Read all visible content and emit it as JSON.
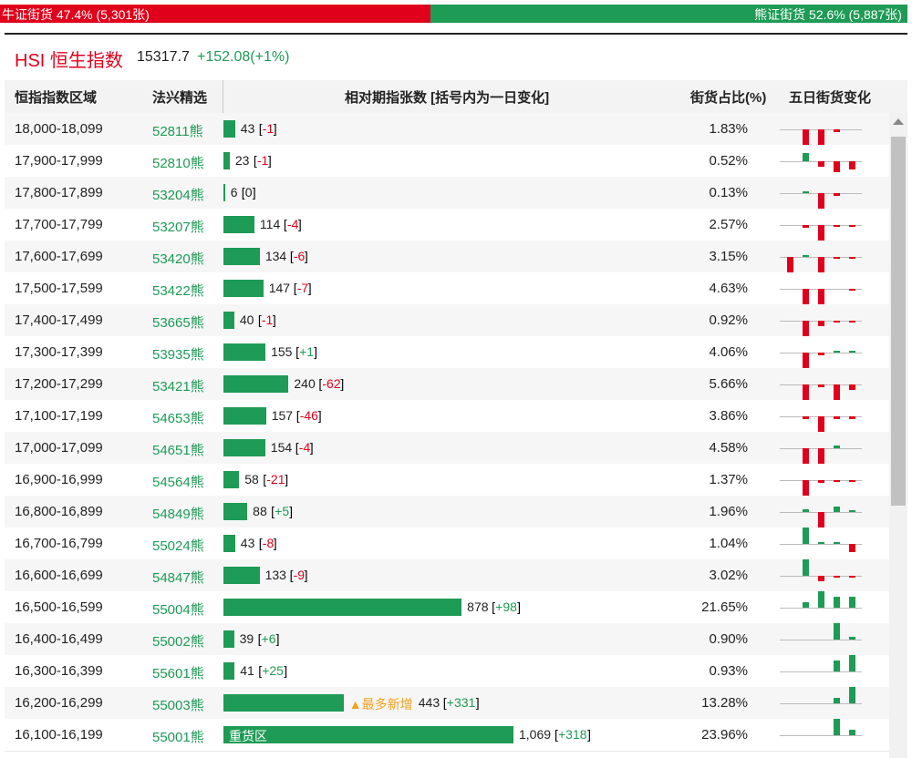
{
  "top_bar": {
    "bull": {
      "text": "牛证街货 47.4% (5,301张)",
      "share": 47.4
    },
    "bear": {
      "text": "熊证街货 52.6% (5,887张)",
      "share": 52.6
    }
  },
  "header": {
    "title": "HSI 恒生指数",
    "price": "15317.7",
    "change": "+152.08(+1%)"
  },
  "table": {
    "columns": [
      "恒指指数区域",
      "法兴精选",
      "相对期指张数 [括号内为一日变化]",
      "街货占比(%)",
      "五日街货变化"
    ],
    "rows": [
      {
        "range": "18,000-18,099",
        "code": "52811熊",
        "count": 43,
        "change": "-1",
        "pct": "1.83%",
        "five_day": [
          0,
          -3,
          -3,
          -0.5,
          0
        ]
      },
      {
        "range": "17,900-17,999",
        "code": "52810熊",
        "count": 23,
        "change": "-1",
        "pct": "0.52%",
        "five_day": [
          0,
          1.5,
          -1,
          -2,
          -1.5
        ]
      },
      {
        "range": "17,800-17,899",
        "code": "53204熊",
        "count": 6,
        "change": "0",
        "pct": "0.13%",
        "five_day": [
          0,
          0.3,
          -3,
          -0.5,
          0
        ]
      },
      {
        "range": "17,700-17,799",
        "code": "53207熊",
        "count": 114,
        "change": "-4",
        "pct": "2.57%",
        "five_day": [
          0,
          -0.5,
          -3,
          -0.3,
          -0.3
        ]
      },
      {
        "range": "17,600-17,699",
        "code": "53420熊",
        "count": 134,
        "change": "-6",
        "pct": "3.15%",
        "five_day": [
          -3,
          0.3,
          -3,
          -0.3,
          -0.3
        ]
      },
      {
        "range": "17,500-17,599",
        "code": "53422熊",
        "count": 147,
        "change": "-7",
        "pct": "4.63%",
        "five_day": [
          0,
          -3,
          -3,
          0,
          -0.3
        ]
      },
      {
        "range": "17,400-17,499",
        "code": "53665熊",
        "count": 40,
        "change": "-1",
        "pct": "0.92%",
        "five_day": [
          0,
          -3,
          -1,
          -0.3,
          -0.3
        ]
      },
      {
        "range": "17,300-17,399",
        "code": "53935熊",
        "count": 155,
        "change": "+1",
        "pct": "4.06%",
        "five_day": [
          0,
          -3,
          -0.5,
          0.3,
          0.3
        ]
      },
      {
        "range": "17,200-17,299",
        "code": "53421熊",
        "count": 240,
        "change": "-62",
        "pct": "5.66%",
        "five_day": [
          0,
          -3,
          -0.5,
          -3,
          -1
        ]
      },
      {
        "range": "17,100-17,199",
        "code": "54653熊",
        "count": 157,
        "change": "-46",
        "pct": "3.86%",
        "five_day": [
          0,
          -0.5,
          -3,
          -0.5,
          -0.5
        ]
      },
      {
        "range": "17,000-17,099",
        "code": "54651熊",
        "count": 154,
        "change": "-4",
        "pct": "4.58%",
        "five_day": [
          0,
          -3,
          -3,
          0.5,
          0
        ]
      },
      {
        "range": "16,900-16,999",
        "code": "54564熊",
        "count": 58,
        "change": "-21",
        "pct": "1.37%",
        "five_day": [
          0,
          -3,
          -0.5,
          -0.3,
          -0.3
        ]
      },
      {
        "range": "16,800-16,899",
        "code": "54849熊",
        "count": 88,
        "change": "+5",
        "pct": "1.96%",
        "five_day": [
          0,
          0.5,
          -3,
          1,
          0.3
        ]
      },
      {
        "range": "16,700-16,799",
        "code": "55024熊",
        "count": 43,
        "change": "-8",
        "pct": "1.04%",
        "five_day": [
          0,
          3,
          0.3,
          0.3,
          -1.5
        ]
      },
      {
        "range": "16,600-16,699",
        "code": "54847熊",
        "count": 133,
        "change": "-9",
        "pct": "3.02%",
        "five_day": [
          0,
          3,
          -1,
          -0.3,
          -0.3
        ]
      },
      {
        "range": "16,500-16,599",
        "code": "55004熊",
        "count": 878,
        "change": "+98",
        "pct": "21.65%",
        "five_day": [
          0,
          1,
          3,
          2,
          2
        ]
      },
      {
        "range": "16,400-16,499",
        "code": "55002熊",
        "count": 39,
        "change": "+6",
        "pct": "0.90%",
        "five_day": [
          0,
          0,
          0,
          3,
          0.5
        ]
      },
      {
        "range": "16,300-16,399",
        "code": "55601熊",
        "count": 41,
        "change": "+25",
        "pct": "0.93%",
        "five_day": [
          0,
          0,
          0,
          2,
          3
        ]
      },
      {
        "range": "16,200-16,299",
        "code": "55003熊",
        "count": 443,
        "change": "+331",
        "pct": "13.28%",
        "tag_after": "▲最多新增",
        "five_day": [
          0,
          0,
          0,
          1,
          3
        ]
      },
      {
        "range": "16,100-16,199",
        "code": "55001熊",
        "count": 1069,
        "count_label": "1,069",
        "change": "+318",
        "pct": "23.96%",
        "tag_inside": "重货区",
        "five_day": [
          0,
          0,
          0,
          3,
          1
        ]
      }
    ]
  }
}
